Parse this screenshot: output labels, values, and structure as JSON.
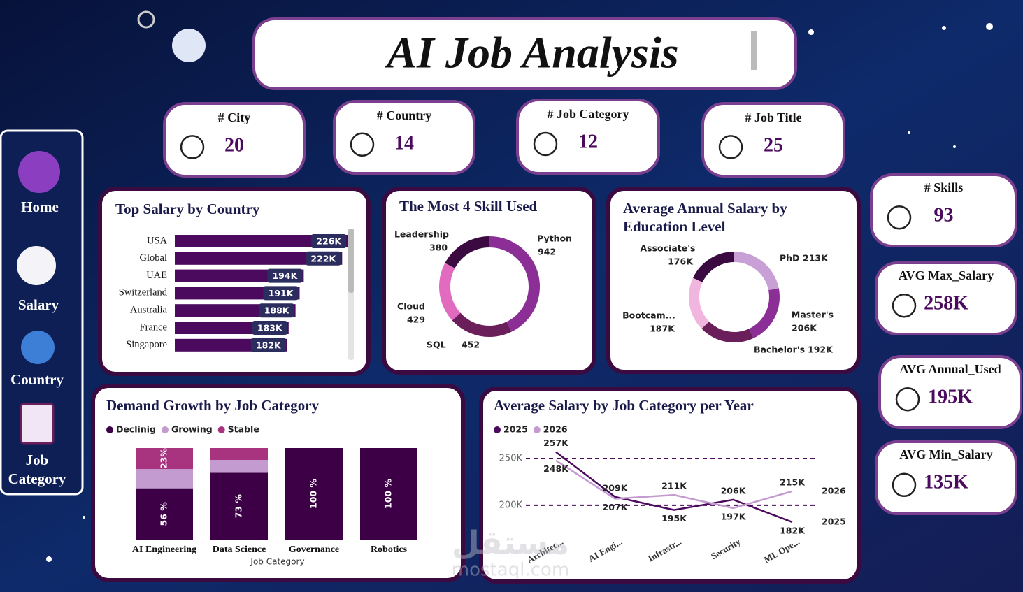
{
  "title": "AI Job Analysis",
  "nav": [
    "Home",
    "Salary",
    "Country",
    "Job Category"
  ],
  "kpis": [
    {
      "label": "# City",
      "value": 20
    },
    {
      "label": "# Country",
      "value": 14
    },
    {
      "label": "# Job Category",
      "value": 12
    },
    {
      "label": "# Job Title",
      "value": 25
    },
    {
      "label": "# Skills",
      "value": 93
    },
    {
      "label": "AVG Max_Salary",
      "value": "258K"
    },
    {
      "label": "AVG Annual_Used",
      "value": "195K"
    },
    {
      "label": "AVG Min_Salary",
      "value": "135K"
    }
  ],
  "chart_data": [
    {
      "type": "hbar",
      "title": "Top Salary by Country",
      "categories": [
        "USA",
        "Global",
        "UAE",
        "Switzerland",
        "Australia",
        "France",
        "Singapore"
      ],
      "values": [
        226000,
        222000,
        194000,
        191000,
        188000,
        183000,
        182000
      ],
      "value_labels": [
        "226K",
        "222K",
        "194K",
        "191K",
        "188K",
        "183K",
        "182K"
      ],
      "color": "#4b0a5e",
      "xlim": [
        100000,
        230000
      ]
    },
    {
      "type": "donut",
      "title": "The Most 4 Skill Used",
      "categories": [
        "Python",
        "SQL",
        "Cloud",
        "Leadership"
      ],
      "values": [
        942,
        452,
        429,
        380
      ],
      "colors": [
        "#8b2f97",
        "#6b1f5a",
        "#e06bbf",
        "#3a0a40"
      ]
    },
    {
      "type": "donut",
      "title": "Average Annual Salary by Education Level",
      "categories": [
        "PhD",
        "Master's",
        "Bachelor's",
        "Bootcam...",
        "Associate's"
      ],
      "values": [
        213000,
        206000,
        192000,
        187000,
        176000
      ],
      "value_labels": [
        "213K",
        "206K",
        "192K",
        "187K",
        "176K"
      ],
      "colors": [
        "#c9a0d6",
        "#8b2f97",
        "#6b1f5a",
        "#f0b6df",
        "#3a0a40"
      ]
    },
    {
      "type": "stacked_bar",
      "title": "Demand Growth by Job Category",
      "x_label": "Job Category",
      "categories": [
        "AI Engineering",
        "Data Science",
        "Governance",
        "Robotics"
      ],
      "ylim": [
        0,
        100
      ],
      "series": [
        {
          "name": "Declinig",
          "color": "#3d0047",
          "values": [
            56,
            73,
            100,
            100
          ],
          "value_labels": [
            "56 %",
            "73 %",
            "100 %",
            "100 %"
          ]
        },
        {
          "name": "Growing",
          "color": "#c49bd0",
          "values": [
            21,
            14,
            0,
            0
          ]
        },
        {
          "name": "Stable",
          "color": "#a8337f",
          "values": [
            23,
            13,
            0,
            0
          ],
          "value_labels": [
            "23%",
            null,
            null,
            null
          ]
        }
      ]
    },
    {
      "type": "line",
      "title": "Average Salary by Job Category per Year",
      "categories": [
        "Architec...",
        "AI Engi...",
        "Infrastr...",
        "Security",
        "ML Ope..."
      ],
      "ylim": [
        170000,
        262000
      ],
      "yticks": [
        {
          "value": 200000,
          "label": "200K"
        },
        {
          "value": 250000,
          "label": "250K"
        }
      ],
      "grid": "dashed",
      "series": [
        {
          "name": "2025",
          "color": "#4b0a5e",
          "values": [
            257000,
            209000,
            195000,
            206000,
            182000
          ],
          "value_labels": [
            "257K",
            "209K",
            "195K",
            "206K",
            "182K"
          ]
        },
        {
          "name": "2026",
          "color": "#c49bd0",
          "values": [
            248000,
            207000,
            211000,
            197000,
            215000
          ],
          "value_labels": [
            "248K",
            "207K",
            "211K",
            "197K",
            "215K"
          ]
        }
      ]
    }
  ],
  "watermark": [
    "مستقل",
    "mostaql.com"
  ]
}
